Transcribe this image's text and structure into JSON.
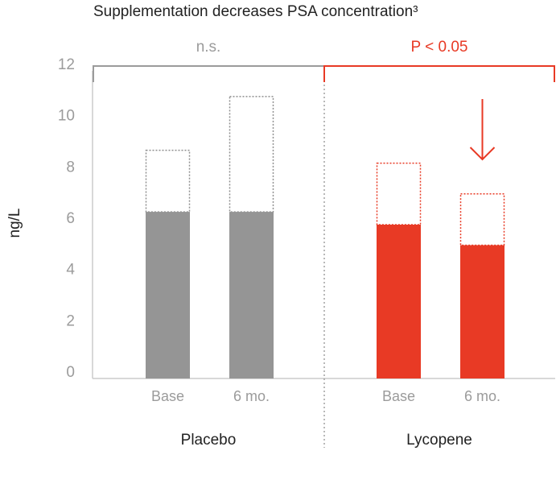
{
  "chart_data": {
    "type": "bar",
    "title": "Supplementation decreases PSA concentration³",
    "ylabel": "ng/L",
    "xlabel": "",
    "ylim": [
      0,
      12
    ],
    "yticks": [
      0,
      2,
      4,
      6,
      8,
      10,
      12
    ],
    "groups": [
      {
        "name": "Placebo",
        "color": "#959595",
        "significance": "n.s.",
        "significance_color": "#9b9b9b",
        "bars": [
          {
            "category": "Base",
            "value": 6.5,
            "range_top": 8.9
          },
          {
            "category": "6 mo.",
            "value": 6.5,
            "range_top": 11.0
          }
        ]
      },
      {
        "name": "Lycopene",
        "color": "#e83a25",
        "significance": "P < 0.05",
        "significance_color": "#e83a25",
        "bars": [
          {
            "category": "Base",
            "value": 6.0,
            "range_top": 8.4
          },
          {
            "category": "6 mo.",
            "value": 5.2,
            "range_top": 7.2
          }
        ]
      }
    ],
    "annotations": [
      {
        "type": "arrow-down",
        "group": "Lycopene",
        "bar": "6 mo.",
        "color": "#e83a25"
      }
    ]
  }
}
